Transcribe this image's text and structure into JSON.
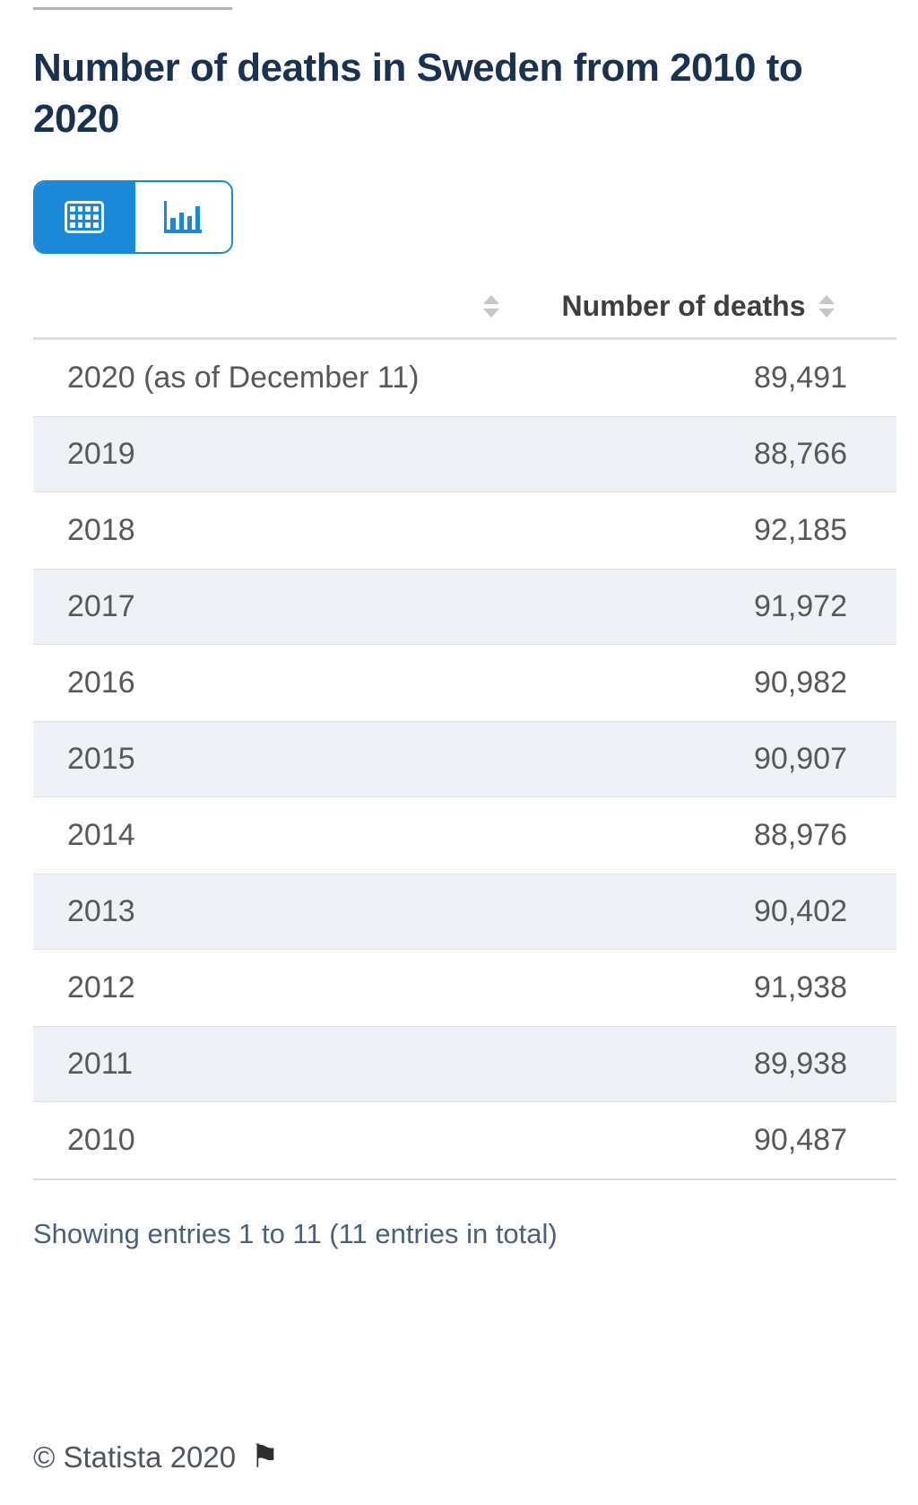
{
  "header": {
    "title": "Number of deaths in Sweden from 2010 to 2020"
  },
  "view_toggle": {
    "active_view": "table",
    "accent_color": "#1a8ad8",
    "icons": {
      "table_view": "table-grid-icon",
      "chart_view": "bar-chart-icon"
    }
  },
  "table": {
    "columns": [
      {
        "label": "",
        "sortable": true
      },
      {
        "label": "Number of deaths",
        "sortable": true
      }
    ],
    "rows": [
      {
        "label": "2020 (as of December 11)",
        "value": "89,491"
      },
      {
        "label": "2019",
        "value": "88,766"
      },
      {
        "label": "2018",
        "value": "92,185"
      },
      {
        "label": "2017",
        "value": "91,972"
      },
      {
        "label": "2016",
        "value": "90,982"
      },
      {
        "label": "2015",
        "value": "90,907"
      },
      {
        "label": "2014",
        "value": "88,976"
      },
      {
        "label": "2013",
        "value": "90,402"
      },
      {
        "label": "2012",
        "value": "91,938"
      },
      {
        "label": "2011",
        "value": "89,938"
      },
      {
        "label": "2010",
        "value": "90,487"
      }
    ],
    "stripe_color": "#eef2f7",
    "sort_icon": "sort-arrows-icon"
  },
  "footer": {
    "showing_text": "Showing entries 1 to 11 (11 entries in total)",
    "copyright_text": "© Statista 2020",
    "copyright_flag_icon": "black-flag-icon",
    "flag_glyph": "⚑"
  },
  "colors": {
    "title_navy": "#1a3150",
    "accent_blue": "#1a8ad8",
    "row_text": "#57585a",
    "header_text": "#3e3e3e",
    "showing_text": "#4c6175",
    "divider": "#dcdcdc"
  }
}
